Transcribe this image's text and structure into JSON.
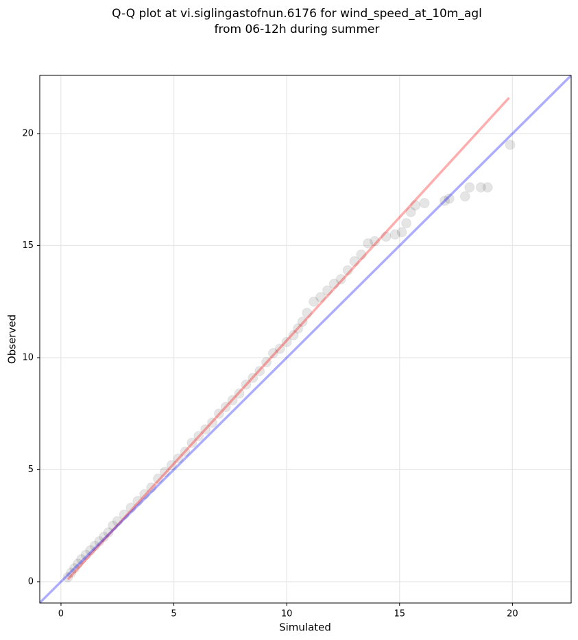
{
  "chart_data": {
    "type": "scatter",
    "title": [
      "Q-Q plot at vi.siglingastofnun.6176 for wind_speed_at_10m_agl",
      "from 06-12h during summer"
    ],
    "x_label": "Simulated",
    "y_label": "Observed",
    "xlim": [
      -0.94,
      22.6
    ],
    "ylim": [
      -0.95,
      22.6
    ],
    "xticks": [
      0,
      5,
      10,
      15,
      20
    ],
    "yticks": [
      0,
      5,
      10,
      15,
      20
    ],
    "grid": true,
    "color": "#000000",
    "x": [
      0.3,
      0.45,
      0.6,
      0.75,
      0.9,
      1.1,
      1.3,
      1.5,
      1.7,
      1.9,
      2.1,
      2.3,
      2.5,
      2.8,
      3.1,
      3.4,
      3.7,
      4.0,
      4.3,
      4.6,
      4.9,
      5.2,
      5.5,
      5.8,
      6.1,
      6.4,
      6.7,
      7.0,
      7.3,
      7.6,
      7.9,
      8.2,
      8.5,
      8.8,
      9.1,
      9.4,
      9.7,
      10.0,
      10.3,
      10.5,
      10.7,
      10.9,
      11.2,
      11.5,
      11.8,
      12.1,
      12.4,
      12.7,
      13.0,
      13.3,
      13.6,
      13.9,
      14.4,
      14.8,
      15.1,
      15.3,
      15.5,
      15.7,
      16.1,
      17.0,
      17.2,
      17.9,
      18.1,
      18.6,
      18.9,
      19.9
    ],
    "values": [
      0.2,
      0.4,
      0.6,
      0.8,
      1.0,
      1.2,
      1.4,
      1.6,
      1.8,
      2.0,
      2.2,
      2.5,
      2.7,
      3.0,
      3.3,
      3.6,
      3.9,
      4.2,
      4.6,
      4.9,
      5.2,
      5.5,
      5.8,
      6.2,
      6.5,
      6.8,
      7.1,
      7.5,
      7.8,
      8.1,
      8.4,
      8.8,
      9.1,
      9.4,
      9.8,
      10.2,
      10.4,
      10.7,
      11.0,
      11.3,
      11.6,
      12.0,
      12.5,
      12.7,
      13.0,
      13.3,
      13.5,
      13.9,
      14.3,
      14.6,
      15.1,
      15.2,
      15.4,
      15.5,
      15.6,
      16.0,
      16.5,
      16.8,
      16.9,
      17.0,
      17.1,
      17.2,
      17.6,
      17.6,
      17.6,
      19.5
    ],
    "lines": [
      {
        "x": [
          0.3,
          19.85
        ],
        "y": [
          0.1,
          21.6
        ],
        "color": "#ff0000"
      },
      {
        "x": [
          -1,
          23
        ],
        "y": [
          -1,
          23
        ],
        "color": "#0000ff"
      }
    ]
  }
}
